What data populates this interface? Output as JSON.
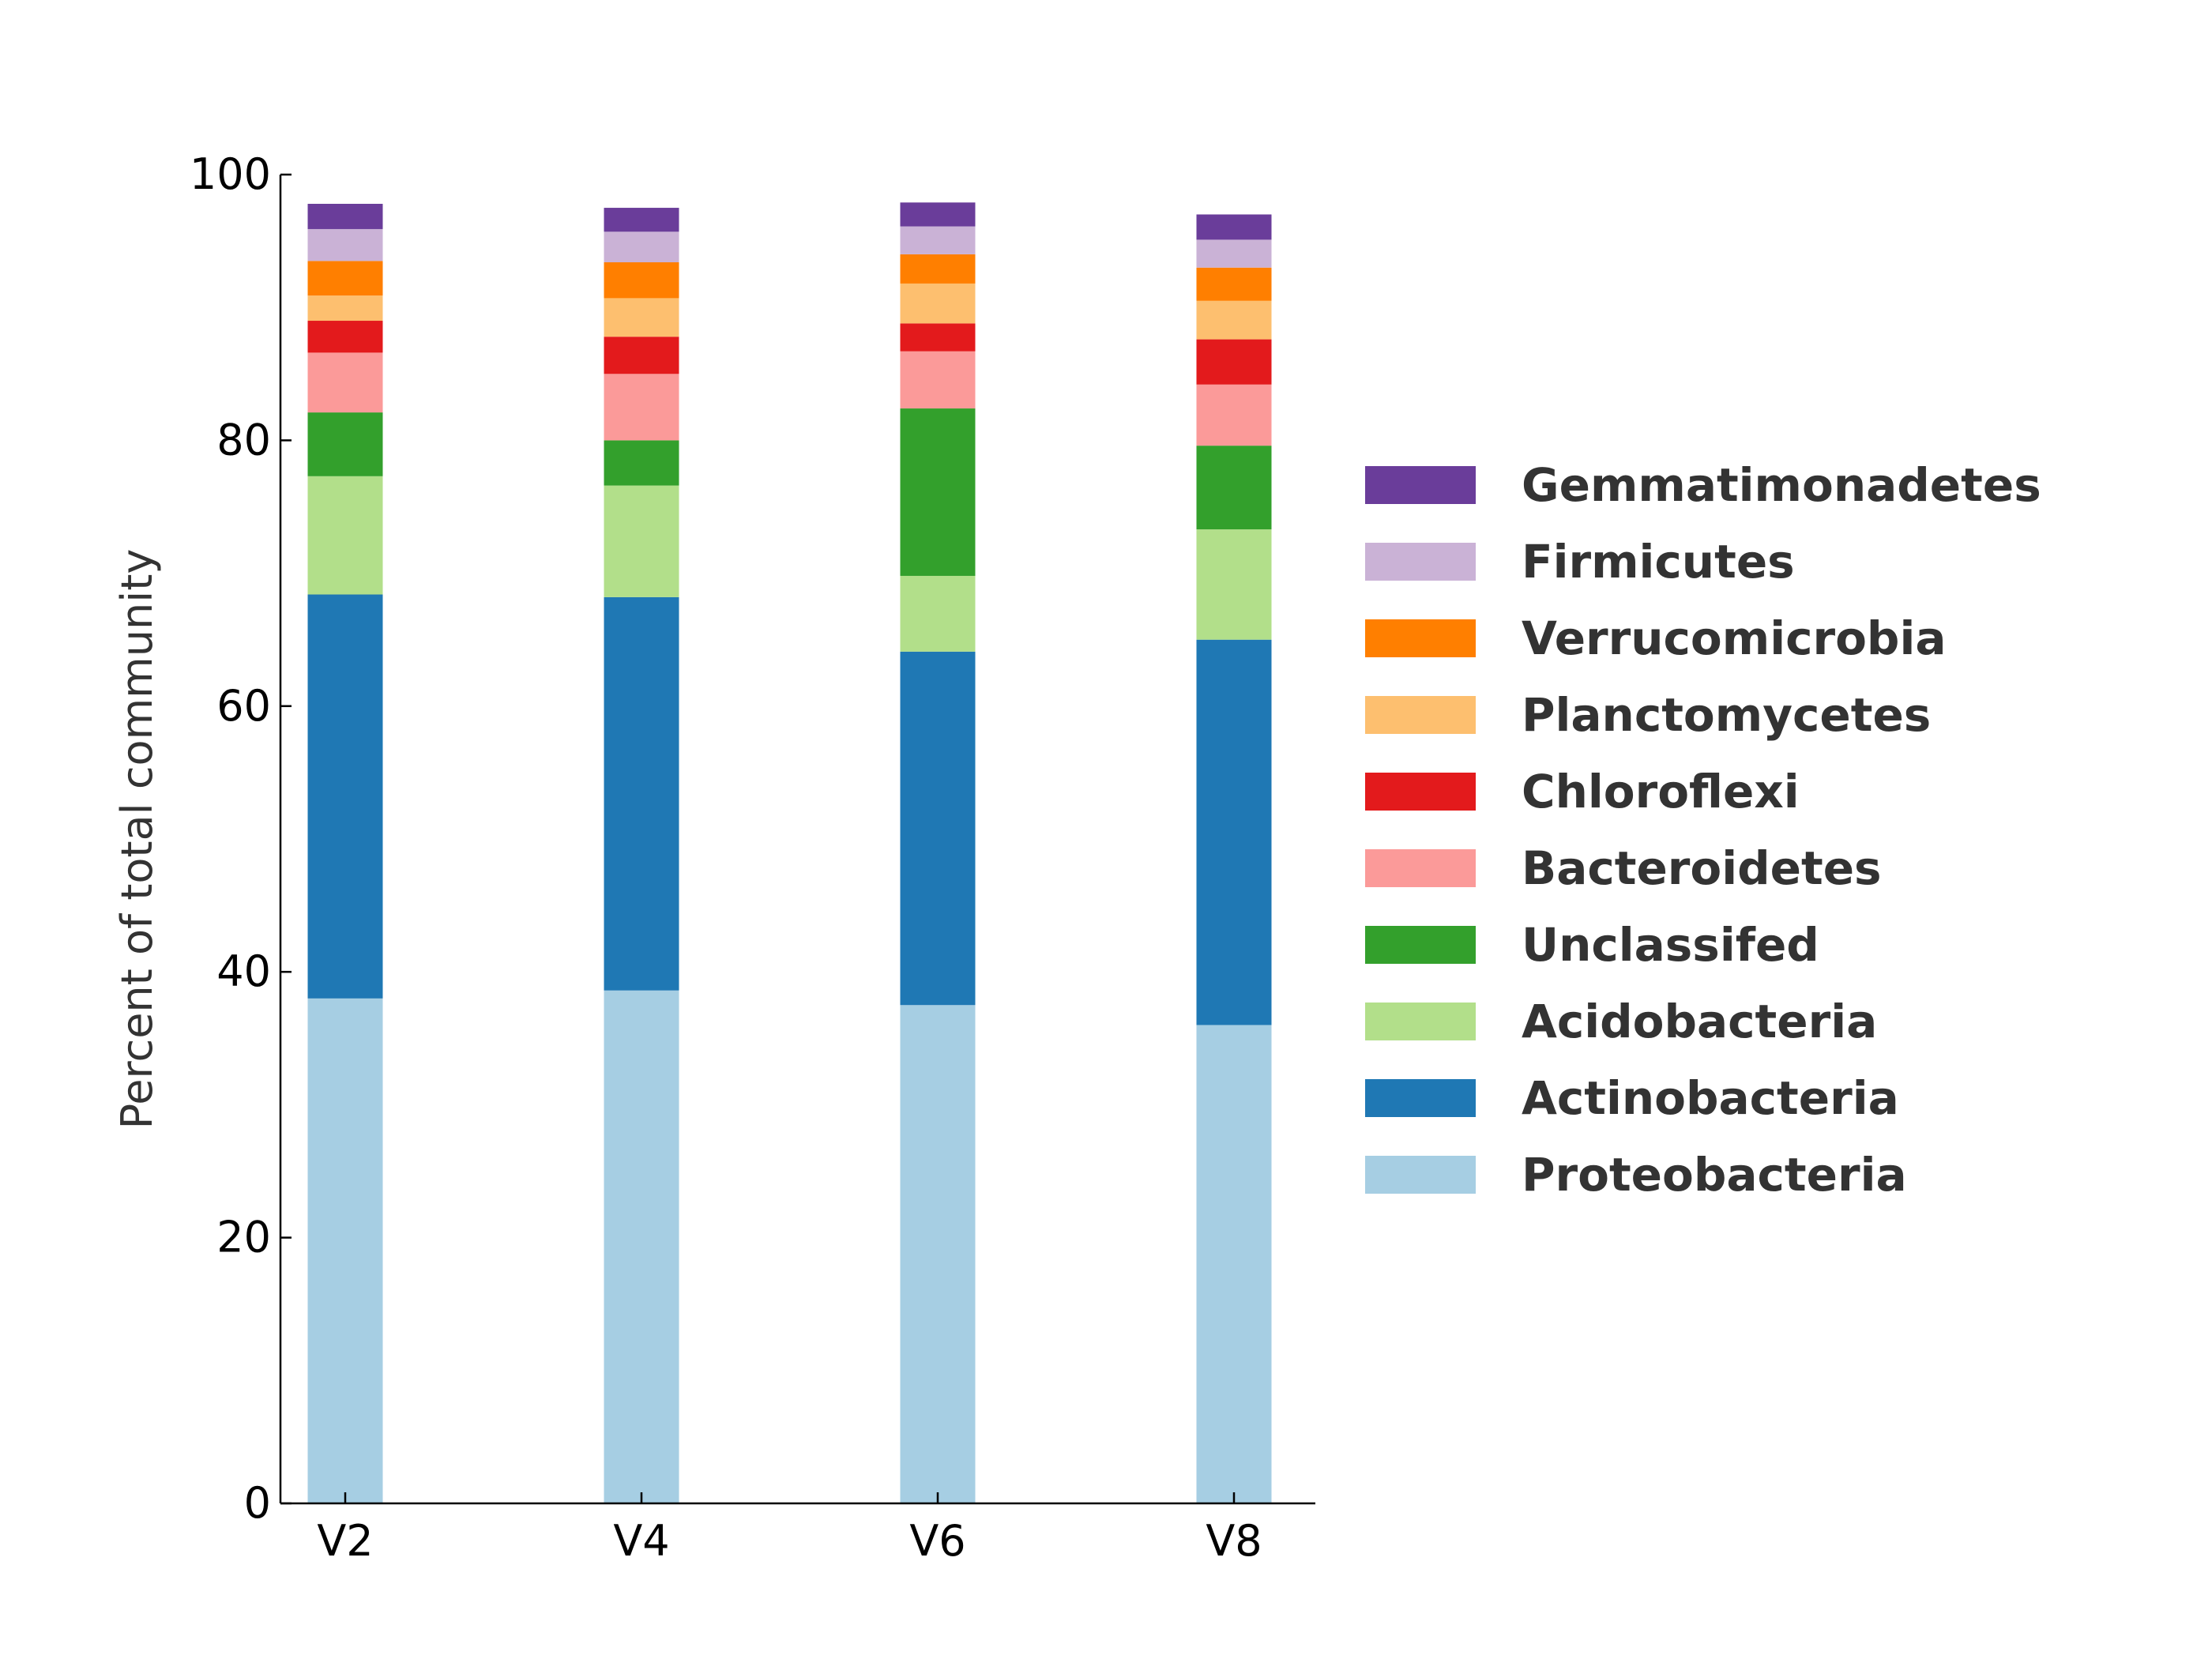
{
  "chart_data": {
    "type": "bar",
    "stacked": true,
    "title": "",
    "xlabel": "",
    "ylabel": "Percent of total community",
    "ylim": [
      0,
      100
    ],
    "yticks": [
      0,
      20,
      40,
      60,
      80,
      100
    ],
    "categories": [
      "V2",
      "V4",
      "V6",
      "V8"
    ],
    "grid": false,
    "legend_position": "right",
    "series": [
      {
        "name": "Proteobacteria",
        "color": "#a6cee3",
        "values": [
          38.0,
          38.6,
          37.5,
          36.0
        ]
      },
      {
        "name": "Actinobacteria",
        "color": "#1f78b4",
        "values": [
          30.4,
          29.6,
          26.6,
          29.0
        ]
      },
      {
        "name": "Acidobacteria",
        "color": "#b2df8a",
        "values": [
          8.9,
          8.4,
          5.7,
          8.3
        ]
      },
      {
        "name": "Unclassifed",
        "color": "#33a02c",
        "values": [
          4.8,
          3.4,
          12.6,
          6.3
        ]
      },
      {
        "name": "Bacteroidetes",
        "color": "#fb9a99",
        "values": [
          4.5,
          5.0,
          4.3,
          4.6
        ]
      },
      {
        "name": "Chloroflexi",
        "color": "#e31a1c",
        "values": [
          2.4,
          2.8,
          2.1,
          3.4
        ]
      },
      {
        "name": "Planctomycetes",
        "color": "#fdbf6f",
        "values": [
          1.9,
          2.9,
          3.0,
          2.9
        ]
      },
      {
        "name": "Verrucomicrobia",
        "color": "#ff7f00",
        "values": [
          2.6,
          2.7,
          2.2,
          2.5
        ]
      },
      {
        "name": "Firmicutes",
        "color": "#cab2d6",
        "values": [
          2.4,
          2.3,
          2.1,
          2.1
        ]
      },
      {
        "name": "Gemmatimonadetes",
        "color": "#6a3d9a",
        "values": [
          1.9,
          1.8,
          1.8,
          1.9
        ]
      }
    ]
  }
}
